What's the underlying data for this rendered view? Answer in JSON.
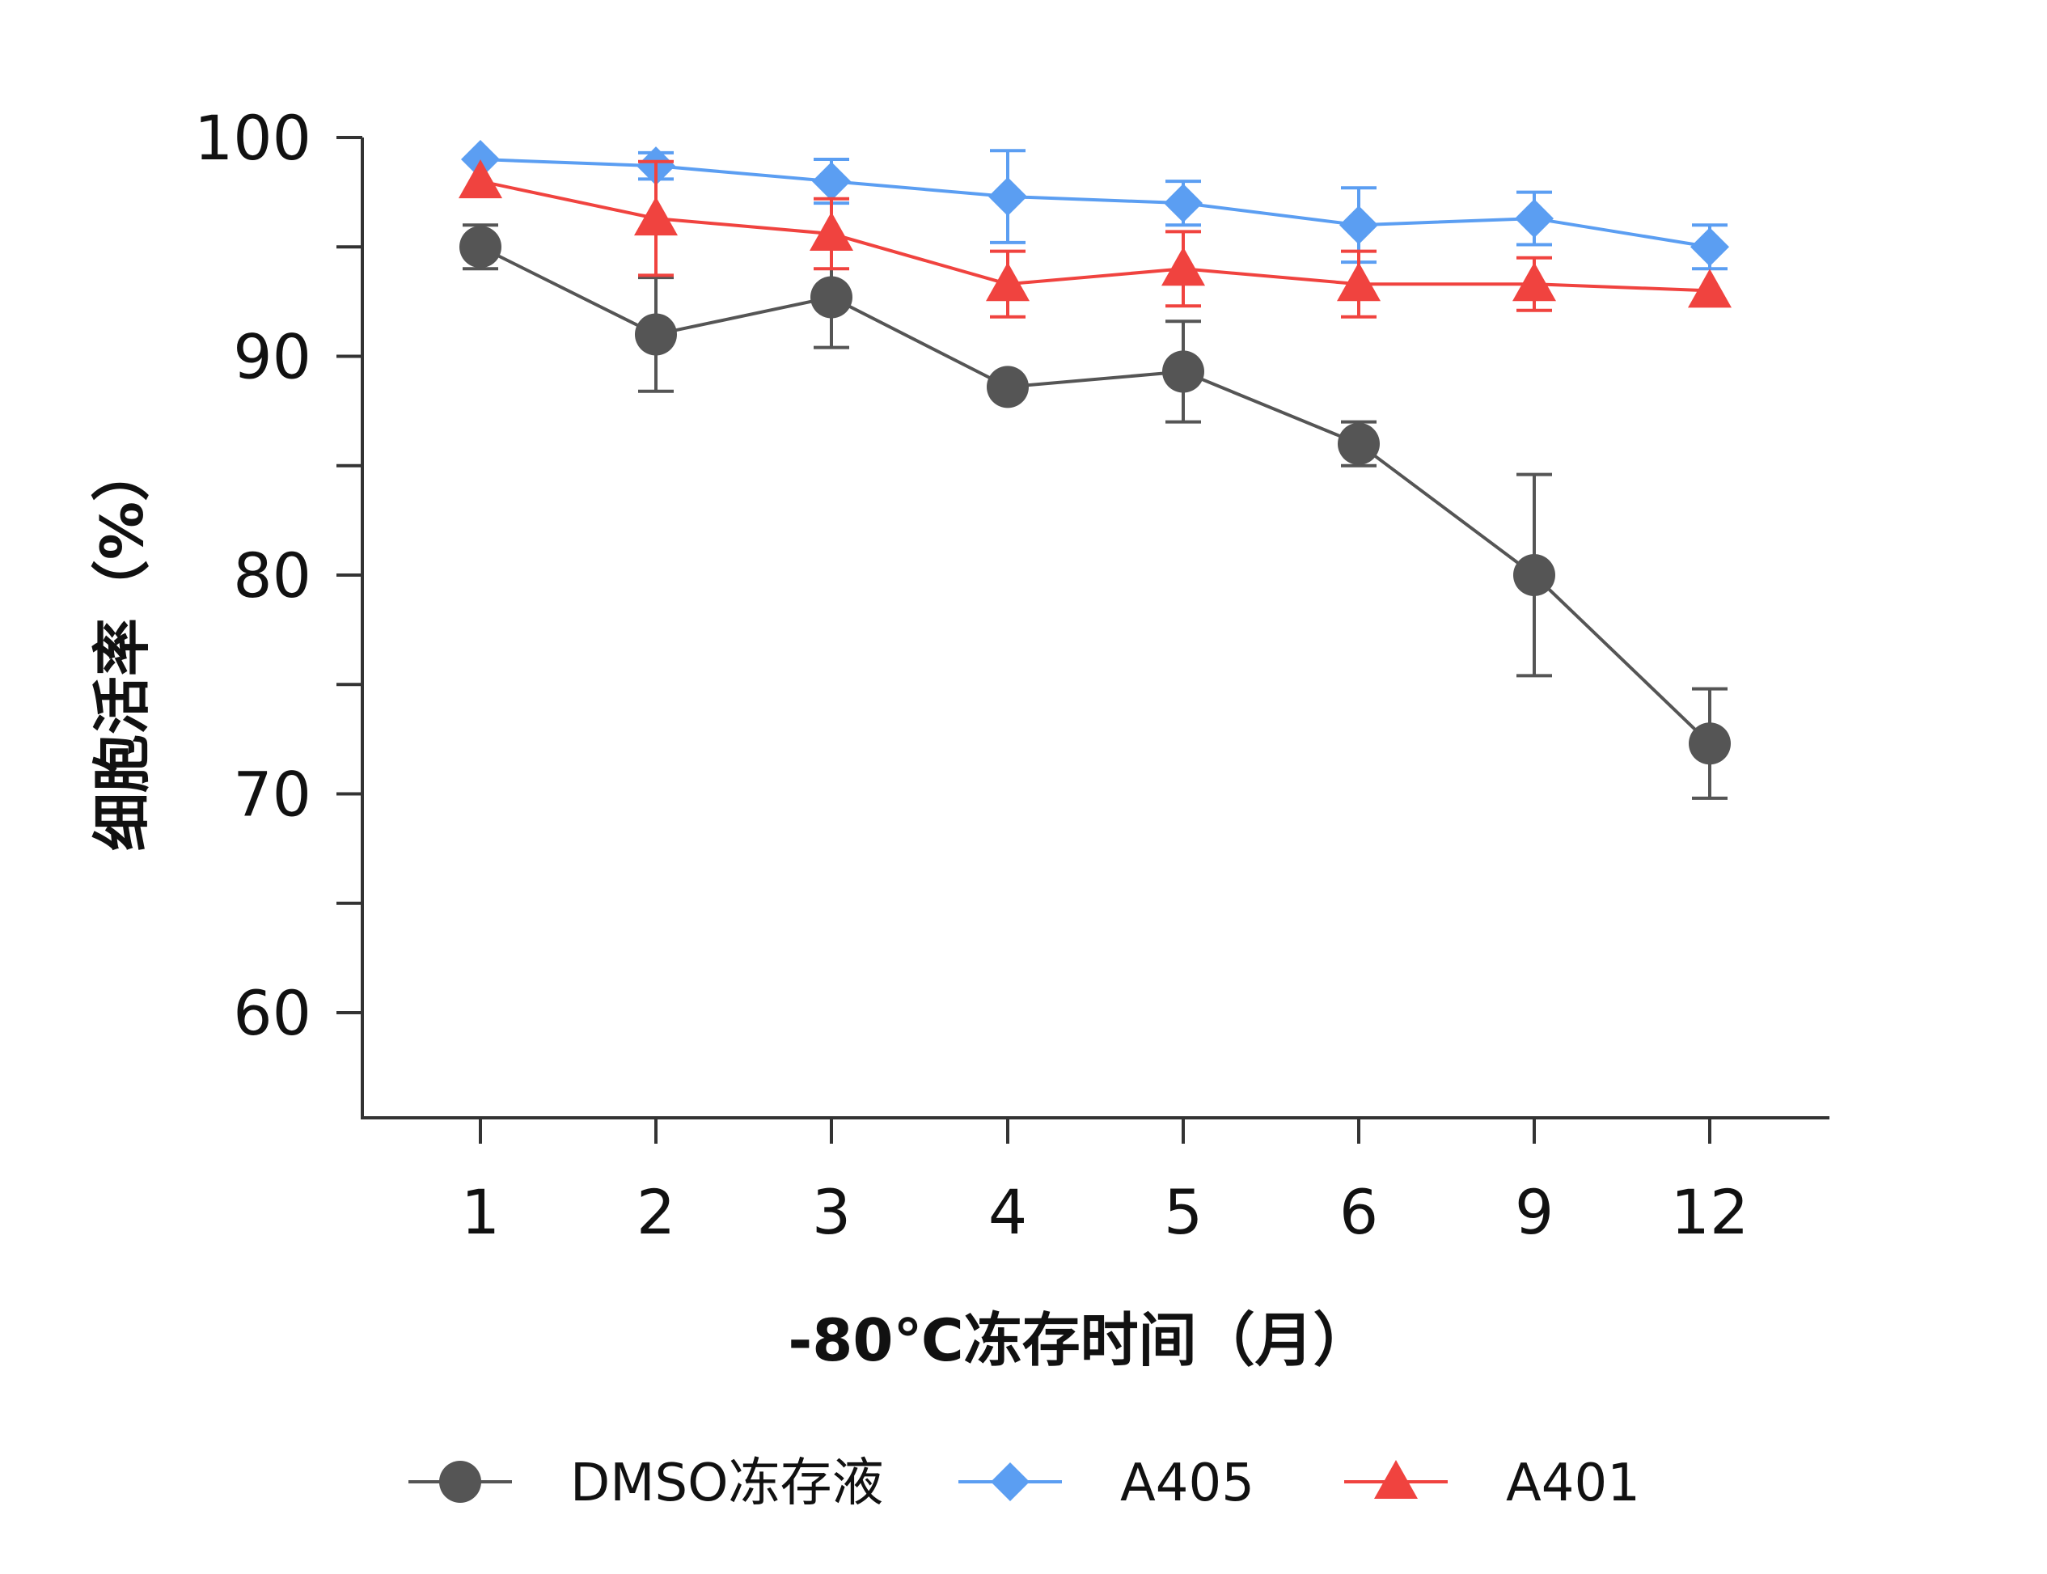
{
  "chart_data": {
    "type": "line",
    "title": "",
    "xlabel": "-80℃冻存时间（月）",
    "ylabel": "细胞活率（%）",
    "categories": [
      "1",
      "2",
      "3",
      "4",
      "5",
      "6",
      "9",
      "12"
    ],
    "ylim": [
      55,
      100
    ],
    "yticks": [
      60,
      70,
      80,
      90,
      100
    ],
    "grid": false,
    "legend_position": "bottom",
    "series": [
      {
        "name": "DMSO冻存液",
        "color": "#555555",
        "marker": "circle",
        "values": [
          95.0,
          91.0,
          92.7,
          88.6,
          89.3,
          86.0,
          80.0,
          72.3
        ],
        "errors": [
          1.0,
          2.6,
          2.3,
          0.0,
          2.3,
          1.0,
          4.6,
          2.5
        ]
      },
      {
        "name": "A405",
        "color": "#5b9ef2",
        "marker": "diamond",
        "values": [
          99.0,
          98.7,
          98.0,
          97.3,
          97.0,
          96.0,
          96.3,
          95.0
        ],
        "errors": [
          0.0,
          0.6,
          1.0,
          2.1,
          1.0,
          1.7,
          1.2,
          1.0
        ]
      },
      {
        "name": "A401",
        "color": "#f0433f",
        "marker": "triangle",
        "values": [
          98.0,
          96.3,
          95.6,
          93.3,
          94.0,
          93.3,
          93.3,
          93.0
        ],
        "errors": [
          0.0,
          2.6,
          1.6,
          1.5,
          1.7,
          1.5,
          1.2,
          0.0
        ]
      }
    ]
  }
}
